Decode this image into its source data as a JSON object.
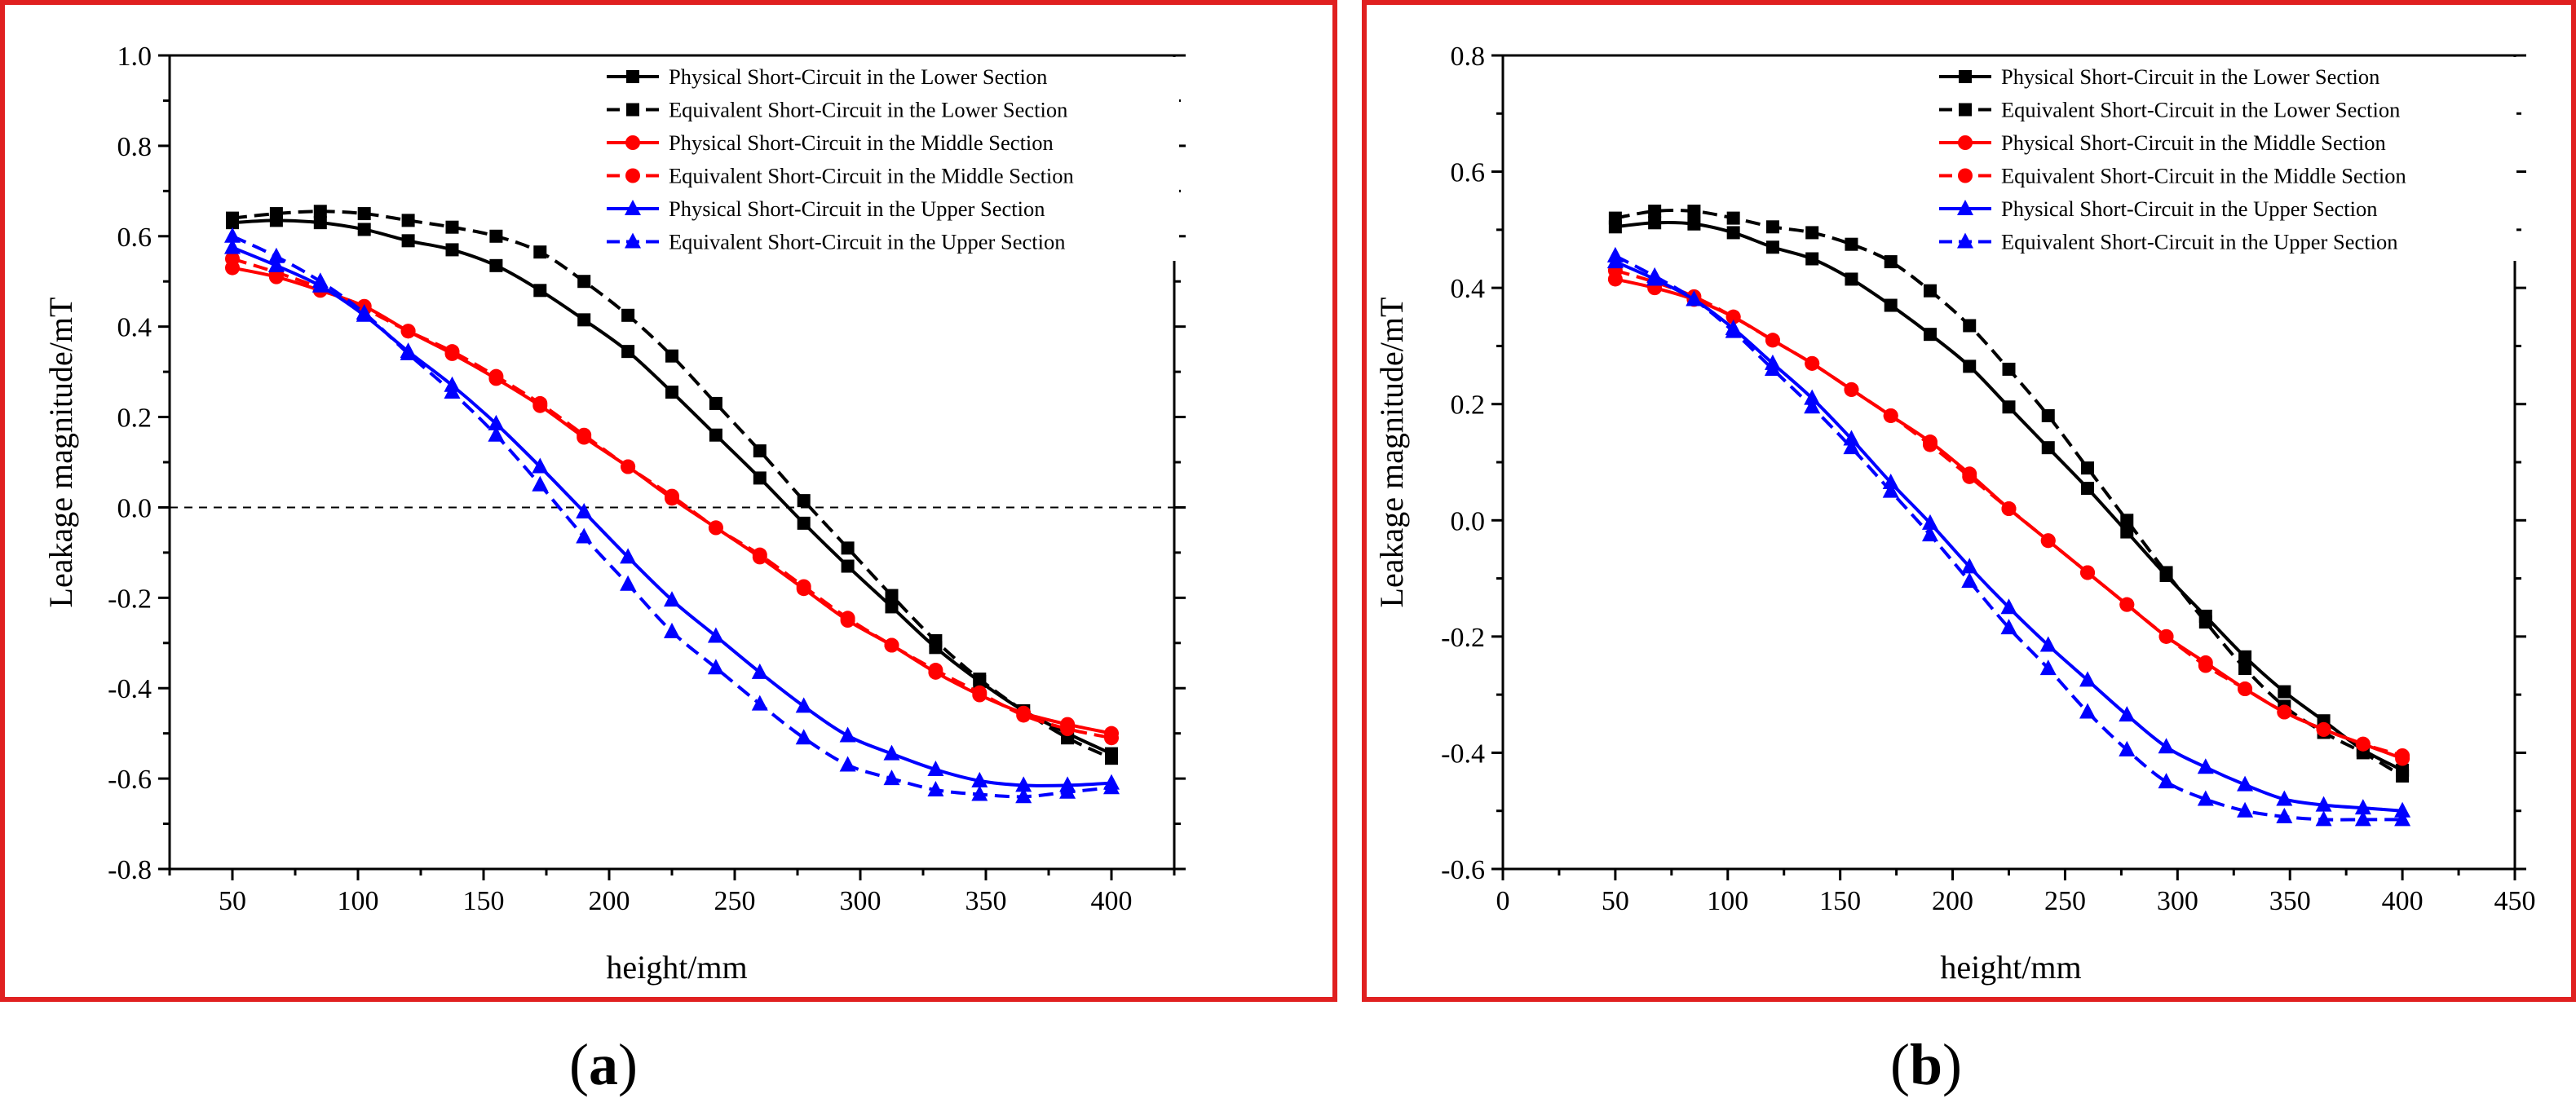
{
  "figure": {
    "panel_labels": [
      {
        "open": "(",
        "letter": "a",
        "close": ")"
      },
      {
        "open": "(",
        "letter": "b",
        "close": ")"
      }
    ],
    "colors": {
      "frame": "#e02020",
      "lower": "#000000",
      "middle": "#ff0000",
      "upper": "#0000ff",
      "zero_line": "#000000"
    },
    "markers": {
      "lower": "square",
      "middle": "circle",
      "upper": "triangle"
    }
  },
  "chart_data": [
    {
      "type": "line",
      "panel": "a",
      "xlabel": "height/mm",
      "ylabel": "Leakage magnitude/mT",
      "xlim": [
        25,
        425
      ],
      "ylim": [
        -0.8,
        1.0
      ],
      "xticks": [
        50,
        100,
        150,
        200,
        250,
        300,
        350,
        400
      ],
      "xtick_labels": [
        "50",
        "100",
        "150",
        "200",
        "250",
        "300",
        "350",
        "400"
      ],
      "yticks": [
        -0.8,
        -0.6,
        -0.4,
        -0.2,
        0.0,
        0.2,
        0.4,
        0.6,
        0.8,
        1.0
      ],
      "ytick_labels": [
        "-0.8",
        "-0.6",
        "-0.4",
        "-0.2",
        "0.0",
        "0.2",
        "0.4",
        "0.6",
        "0.8",
        "1.0"
      ],
      "zero_line": true,
      "legend_position": "top-right",
      "x": [
        50,
        67.5,
        85,
        102.5,
        120,
        137.5,
        155,
        172.5,
        190,
        207.5,
        225,
        242.5,
        260,
        277.5,
        295,
        312.5,
        330,
        347.5,
        365,
        382.5,
        400
      ],
      "series": [
        {
          "name": "Physical Short-Circuit in the Lower Section",
          "group": "lower",
          "dashed": false,
          "values": [
            0.63,
            0.635,
            0.63,
            0.615,
            0.59,
            0.57,
            0.535,
            0.48,
            0.415,
            0.345,
            0.255,
            0.16,
            0.065,
            -0.035,
            -0.13,
            -0.22,
            -0.31,
            -0.385,
            -0.45,
            -0.5,
            -0.545
          ]
        },
        {
          "name": "Equivalent Short-Circuit in the Lower Section",
          "group": "lower",
          "dashed": true,
          "values": [
            0.64,
            0.65,
            0.655,
            0.65,
            0.635,
            0.62,
            0.6,
            0.565,
            0.5,
            0.425,
            0.335,
            0.23,
            0.125,
            0.015,
            -0.09,
            -0.195,
            -0.295,
            -0.38,
            -0.45,
            -0.51,
            -0.555
          ]
        },
        {
          "name": "Physical Short-Circuit in the Middle Section",
          "group": "middle",
          "dashed": false,
          "values": [
            0.53,
            0.51,
            0.48,
            0.445,
            0.39,
            0.34,
            0.285,
            0.225,
            0.155,
            0.09,
            0.02,
            -0.045,
            -0.11,
            -0.18,
            -0.25,
            -0.305,
            -0.365,
            -0.415,
            -0.455,
            -0.48,
            -0.5
          ]
        },
        {
          "name": "Equivalent Short-Circuit in the Middle Section",
          "group": "middle",
          "dashed": true,
          "values": [
            0.55,
            0.52,
            0.485,
            0.44,
            0.39,
            0.345,
            0.29,
            0.23,
            0.16,
            0.09,
            0.025,
            -0.045,
            -0.105,
            -0.175,
            -0.245,
            -0.305,
            -0.36,
            -0.41,
            -0.46,
            -0.49,
            -0.51
          ]
        },
        {
          "name": "Physical Short-Circuit in the Upper Section",
          "group": "upper",
          "dashed": false,
          "values": [
            0.575,
            0.535,
            0.49,
            0.425,
            0.345,
            0.27,
            0.185,
            0.09,
            -0.01,
            -0.11,
            -0.205,
            -0.285,
            -0.365,
            -0.44,
            -0.505,
            -0.545,
            -0.58,
            -0.605,
            -0.615,
            -0.615,
            -0.61
          ]
        },
        {
          "name": "Equivalent Short-Circuit in the Upper Section",
          "group": "upper",
          "dashed": true,
          "values": [
            0.6,
            0.555,
            0.5,
            0.43,
            0.34,
            0.255,
            0.16,
            0.05,
            -0.065,
            -0.17,
            -0.275,
            -0.355,
            -0.435,
            -0.51,
            -0.57,
            -0.6,
            -0.625,
            -0.635,
            -0.64,
            -0.63,
            -0.62
          ]
        }
      ]
    },
    {
      "type": "line",
      "panel": "b",
      "xlabel": "height/mm",
      "ylabel": "Leakage magnitude/mT",
      "xlim": [
        0,
        450
      ],
      "ylim": [
        -0.6,
        0.8
      ],
      "xticks": [
        0,
        50,
        100,
        150,
        200,
        250,
        300,
        350,
        400,
        450
      ],
      "xtick_labels": [
        "0",
        "50",
        "100",
        "150",
        "200",
        "250",
        "300",
        "350",
        "400",
        "450"
      ],
      "yticks": [
        -0.6,
        -0.4,
        -0.2,
        0.0,
        0.2,
        0.4,
        0.6,
        0.8
      ],
      "ytick_labels": [
        "-0.6",
        "-0.4",
        "-0.2",
        "0.0",
        "0.2",
        "0.4",
        "0.6",
        "0.8"
      ],
      "zero_line": false,
      "legend_position": "top-right",
      "x": [
        50,
        67.5,
        85,
        102.5,
        120,
        137.5,
        155,
        172.5,
        190,
        207.5,
        225,
        242.5,
        260,
        277.5,
        295,
        312.5,
        330,
        347.5,
        365,
        382.5,
        400
      ],
      "series": [
        {
          "name": "Physical Short-Circuit in the Lower Section",
          "group": "lower",
          "dashed": false,
          "values": [
            0.505,
            0.512,
            0.51,
            0.495,
            0.47,
            0.45,
            0.415,
            0.37,
            0.32,
            0.265,
            0.195,
            0.125,
            0.055,
            -0.02,
            -0.095,
            -0.165,
            -0.235,
            -0.295,
            -0.345,
            -0.395,
            -0.43
          ]
        },
        {
          "name": "Equivalent Short-Circuit in the Lower Section",
          "group": "lower",
          "dashed": true,
          "values": [
            0.52,
            0.532,
            0.532,
            0.52,
            0.505,
            0.495,
            0.475,
            0.445,
            0.395,
            0.335,
            0.26,
            0.18,
            0.09,
            0.0,
            -0.09,
            -0.175,
            -0.255,
            -0.32,
            -0.365,
            -0.4,
            -0.44
          ]
        },
        {
          "name": "Physical Short-Circuit in the Middle Section",
          "group": "middle",
          "dashed": false,
          "values": [
            0.415,
            0.4,
            0.38,
            0.35,
            0.31,
            0.27,
            0.225,
            0.18,
            0.135,
            0.08,
            0.02,
            -0.035,
            -0.09,
            -0.145,
            -0.2,
            -0.245,
            -0.29,
            -0.33,
            -0.36,
            -0.385,
            -0.41
          ]
        },
        {
          "name": "Equivalent Short-Circuit in the Middle Section",
          "group": "middle",
          "dashed": true,
          "values": [
            0.43,
            0.41,
            0.385,
            0.35,
            0.31,
            0.27,
            0.225,
            0.18,
            0.13,
            0.075,
            0.02,
            -0.035,
            -0.09,
            -0.145,
            -0.2,
            -0.25,
            -0.29,
            -0.33,
            -0.36,
            -0.385,
            -0.405
          ]
        },
        {
          "name": "Physical Short-Circuit in the Upper Section",
          "group": "upper",
          "dashed": false,
          "values": [
            0.445,
            0.415,
            0.38,
            0.33,
            0.27,
            0.21,
            0.14,
            0.065,
            -0.005,
            -0.08,
            -0.15,
            -0.215,
            -0.275,
            -0.335,
            -0.39,
            -0.425,
            -0.455,
            -0.48,
            -0.49,
            -0.495,
            -0.5
          ]
        },
        {
          "name": "Equivalent Short-Circuit in the Upper Section",
          "group": "upper",
          "dashed": true,
          "values": [
            0.455,
            0.42,
            0.38,
            0.325,
            0.26,
            0.195,
            0.125,
            0.05,
            -0.025,
            -0.105,
            -0.185,
            -0.255,
            -0.33,
            -0.395,
            -0.45,
            -0.48,
            -0.5,
            -0.51,
            -0.515,
            -0.515,
            -0.515
          ]
        }
      ]
    }
  ]
}
